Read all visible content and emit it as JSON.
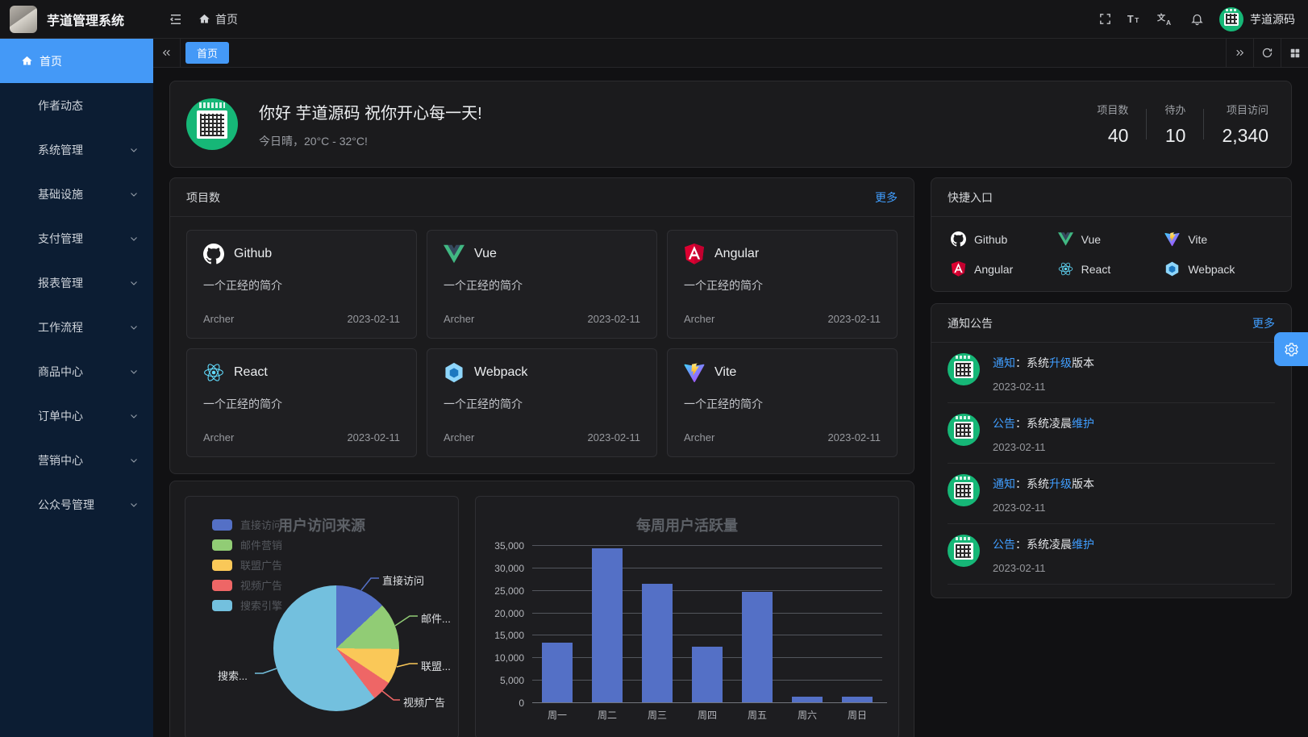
{
  "topbar": {
    "title": "芋道管理系统",
    "breadcrumb_home": "首页",
    "username": "芋道源码",
    "font_icon": {
      "big": "T",
      "small": "T"
    },
    "locale_icon": {
      "cn": "文",
      "en": "A"
    }
  },
  "sidebar": {
    "items": [
      {
        "label": "首页",
        "active": true
      },
      {
        "label": "作者动态",
        "active": false
      },
      {
        "label": "系统管理",
        "active": false
      },
      {
        "label": "基础设施",
        "active": false
      },
      {
        "label": "支付管理",
        "active": false
      },
      {
        "label": "报表管理",
        "active": false
      },
      {
        "label": "工作流程",
        "active": false
      },
      {
        "label": "商品中心",
        "active": false
      },
      {
        "label": "订单中心",
        "active": false
      },
      {
        "label": "营销中心",
        "active": false
      },
      {
        "label": "公众号管理",
        "active": false
      }
    ]
  },
  "tabs": {
    "active": "首页"
  },
  "greeting": {
    "title": "你好 芋道源码 祝你开心每一天!",
    "subtitle": "今日晴，20°C - 32°C!",
    "stats": [
      {
        "label": "项目数",
        "value": "40"
      },
      {
        "label": "待办",
        "value": "10"
      },
      {
        "label": "项目访问",
        "value": "2,340"
      }
    ]
  },
  "projects": {
    "header": "项目数",
    "more": "更多",
    "items": [
      {
        "name": "Github",
        "icon": "github-icon",
        "desc": "一个正经的简介",
        "author": "Archer",
        "date": "2023-02-11"
      },
      {
        "name": "Vue",
        "icon": "vue-icon",
        "desc": "一个正经的简介",
        "author": "Archer",
        "date": "2023-02-11"
      },
      {
        "name": "Angular",
        "icon": "angular-icon",
        "desc": "一个正经的简介",
        "author": "Archer",
        "date": "2023-02-11"
      },
      {
        "name": "React",
        "icon": "react-icon",
        "desc": "一个正经的简介",
        "author": "Archer",
        "date": "2023-02-11"
      },
      {
        "name": "Webpack",
        "icon": "webpack-icon",
        "desc": "一个正经的简介",
        "author": "Archer",
        "date": "2023-02-11"
      },
      {
        "name": "Vite",
        "icon": "vite-icon",
        "desc": "一个正经的简介",
        "author": "Archer",
        "date": "2023-02-11"
      }
    ]
  },
  "shortcuts": {
    "header": "快捷入口",
    "items": [
      {
        "label": "Github",
        "icon": "github-icon"
      },
      {
        "label": "Vue",
        "icon": "vue-icon"
      },
      {
        "label": "Vite",
        "icon": "vite-icon"
      },
      {
        "label": "Angular",
        "icon": "angular-icon"
      },
      {
        "label": "React",
        "icon": "react-icon"
      },
      {
        "label": "Webpack",
        "icon": "webpack-icon"
      }
    ]
  },
  "notices": {
    "header": "通知公告",
    "more": "更多",
    "items": [
      {
        "s0": "通知",
        "s1": "：系统",
        "s2": "升级",
        "s3": "版本",
        "date": "2023-02-11"
      },
      {
        "s0": "公告",
        "s1": "：系统凌晨",
        "s2": "维护",
        "s3": "",
        "date": "2023-02-11"
      },
      {
        "s0": "通知",
        "s1": "：系统",
        "s2": "升级",
        "s3": "版本",
        "date": "2023-02-11"
      },
      {
        "s0": "公告",
        "s1": "：系统凌晨",
        "s2": "维护",
        "s3": "",
        "date": "2023-02-11"
      }
    ]
  },
  "chart_data": [
    {
      "type": "pie",
      "title": "用户访问来源",
      "legend": [
        "直接访问",
        "邮件营销",
        "联盟广告",
        "视频广告",
        "搜索引擎"
      ],
      "callout_labels": [
        "直接访问",
        "邮件...",
        "联盟...",
        "视频广告",
        "搜索..."
      ],
      "values": [
        335,
        310,
        234,
        135,
        1548
      ],
      "colors": [
        "#5470c6",
        "#91cc75",
        "#fac858",
        "#ee6666",
        "#73c0de"
      ],
      "legend_position": "left"
    },
    {
      "type": "bar",
      "title": "每周用户活跃量",
      "categories": [
        "周一",
        "周二",
        "周三",
        "周四",
        "周五",
        "周六",
        "周日"
      ],
      "values": [
        13253,
        34235,
        26321,
        12340,
        24643,
        1322,
        1324
      ],
      "color": "#5470c6",
      "ylim": [
        0,
        35000
      ],
      "ytick_step": 5000,
      "grid": true
    }
  ],
  "colors": {
    "accent_blue": "#409eff",
    "sidebar_bg": "#0c1d33",
    "active_item": "#4499f7",
    "qr_green": "#16b777"
  }
}
